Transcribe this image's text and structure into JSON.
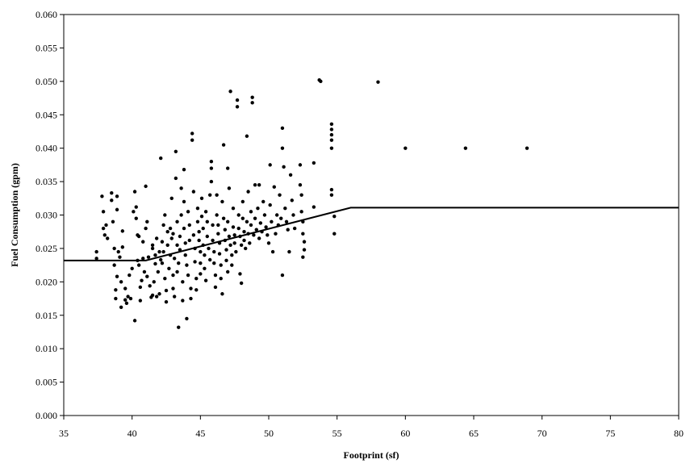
{
  "chart_data": {
    "type": "scatter",
    "title": "",
    "xlabel": "Footprint (sf)",
    "ylabel": "Fuel Consumption (gpm)",
    "xlim": [
      35,
      80
    ],
    "ylim": [
      0,
      0.06
    ],
    "xticks": [
      35,
      40,
      45,
      50,
      55,
      60,
      65,
      70,
      75,
      80
    ],
    "xtick_labels": [
      "35",
      "40",
      "45",
      "50",
      "55",
      "60",
      "65",
      "70",
      "75",
      "80"
    ],
    "yticks": [
      0,
      0.005,
      0.01,
      0.015,
      0.02,
      0.025,
      0.03,
      0.035,
      0.04,
      0.045,
      0.05,
      0.055,
      0.06
    ],
    "ytick_labels": [
      "0.000",
      "0.005",
      "0.010",
      "0.015",
      "0.020",
      "0.025",
      "0.030",
      "0.035",
      "0.040",
      "0.045",
      "0.050",
      "0.055",
      "0.060"
    ],
    "grid": false,
    "legend": "none",
    "colors": {
      "points": "#000000",
      "line": "#000000",
      "axis": "#000000"
    },
    "series": [
      {
        "type": "scatter",
        "points": [
          [
            37.4,
            0.0245
          ],
          [
            37.4,
            0.0235
          ],
          [
            37.8,
            0.0328
          ],
          [
            37.9,
            0.0305
          ],
          [
            37.9,
            0.028
          ],
          [
            38.0,
            0.027
          ],
          [
            38.1,
            0.0285
          ],
          [
            38.2,
            0.0265
          ],
          [
            38.5,
            0.0333
          ],
          [
            38.5,
            0.0322
          ],
          [
            38.6,
            0.029
          ],
          [
            38.7,
            0.025
          ],
          [
            38.7,
            0.0225
          ],
          [
            38.8,
            0.0188
          ],
          [
            38.8,
            0.0175
          ],
          [
            38.9,
            0.0328
          ],
          [
            38.9,
            0.0308
          ],
          [
            38.9,
            0.0208
          ],
          [
            39.0,
            0.0245
          ],
          [
            39.1,
            0.0237
          ],
          [
            39.2,
            0.02
          ],
          [
            39.2,
            0.0162
          ],
          [
            39.3,
            0.0276
          ],
          [
            39.3,
            0.0252
          ],
          [
            39.5,
            0.019
          ],
          [
            39.5,
            0.0173
          ],
          [
            39.6,
            0.0168
          ],
          [
            39.7,
            0.0178
          ],
          [
            39.8,
            0.021
          ],
          [
            39.9,
            0.0175
          ],
          [
            40.0,
            0.022
          ],
          [
            40.1,
            0.0305
          ],
          [
            40.2,
            0.0335
          ],
          [
            40.2,
            0.0142
          ],
          [
            40.3,
            0.0312
          ],
          [
            40.3,
            0.0295
          ],
          [
            40.4,
            0.027
          ],
          [
            40.4,
            0.0232
          ],
          [
            40.5,
            0.0268
          ],
          [
            40.5,
            0.0225
          ],
          [
            40.6,
            0.0172
          ],
          [
            40.6,
            0.0192
          ],
          [
            40.7,
            0.0202
          ],
          [
            40.8,
            0.0235
          ],
          [
            40.8,
            0.026
          ],
          [
            40.9,
            0.0215
          ],
          [
            41.0,
            0.0343
          ],
          [
            41.0,
            0.028
          ],
          [
            41.1,
            0.029
          ],
          [
            41.1,
            0.0208
          ],
          [
            41.2,
            0.0237
          ],
          [
            41.3,
            0.0194
          ],
          [
            41.4,
            0.0177
          ],
          [
            41.5,
            0.018
          ],
          [
            41.5,
            0.025
          ],
          [
            41.5,
            0.0255
          ],
          [
            41.6,
            0.02
          ],
          [
            41.7,
            0.0227
          ],
          [
            41.7,
            0.024
          ],
          [
            41.8,
            0.0265
          ],
          [
            41.8,
            0.0178
          ],
          [
            41.9,
            0.0215
          ],
          [
            42.0,
            0.0245
          ],
          [
            42.0,
            0.0182
          ],
          [
            42.1,
            0.0385
          ],
          [
            42.1,
            0.0233
          ],
          [
            42.2,
            0.0228
          ],
          [
            42.2,
            0.026
          ],
          [
            42.3,
            0.0245
          ],
          [
            42.3,
            0.0285
          ],
          [
            42.4,
            0.03
          ],
          [
            42.4,
            0.0205
          ],
          [
            42.5,
            0.0187
          ],
          [
            42.5,
            0.017
          ],
          [
            42.6,
            0.0275
          ],
          [
            42.6,
            0.0255
          ],
          [
            42.7,
            0.022
          ],
          [
            42.8,
            0.024
          ],
          [
            42.8,
            0.028
          ],
          [
            42.9,
            0.0325
          ],
          [
            42.9,
            0.0265
          ],
          [
            43.0,
            0.0272
          ],
          [
            43.0,
            0.021
          ],
          [
            43.0,
            0.019
          ],
          [
            43.1,
            0.0235
          ],
          [
            43.1,
            0.0178
          ],
          [
            43.2,
            0.0395
          ],
          [
            43.2,
            0.0355
          ],
          [
            43.3,
            0.029
          ],
          [
            43.3,
            0.0255
          ],
          [
            43.3,
            0.0215
          ],
          [
            43.4,
            0.0132
          ],
          [
            43.4,
            0.0228
          ],
          [
            43.5,
            0.0268
          ],
          [
            43.5,
            0.0248
          ],
          [
            43.6,
            0.03
          ],
          [
            43.6,
            0.034
          ],
          [
            43.7,
            0.02
          ],
          [
            43.7,
            0.0172
          ],
          [
            43.8,
            0.0368
          ],
          [
            43.8,
            0.032
          ],
          [
            43.8,
            0.028
          ],
          [
            43.9,
            0.0258
          ],
          [
            43.9,
            0.024
          ],
          [
            44.0,
            0.0225
          ],
          [
            44.0,
            0.0145
          ],
          [
            44.1,
            0.0305
          ],
          [
            44.1,
            0.021
          ],
          [
            44.2,
            0.0285
          ],
          [
            44.2,
            0.0262
          ],
          [
            44.3,
            0.019
          ],
          [
            44.3,
            0.0175
          ],
          [
            44.4,
            0.0422
          ],
          [
            44.4,
            0.0412
          ],
          [
            44.5,
            0.0335
          ],
          [
            44.5,
            0.027
          ],
          [
            44.6,
            0.025
          ],
          [
            44.6,
            0.023
          ],
          [
            44.7,
            0.0205
          ],
          [
            44.7,
            0.0188
          ],
          [
            44.8,
            0.031
          ],
          [
            44.8,
            0.029
          ],
          [
            44.9,
            0.0275
          ],
          [
            44.9,
            0.0262
          ],
          [
            45.0,
            0.0245
          ],
          [
            45.0,
            0.0228
          ],
          [
            45.0,
            0.0212
          ],
          [
            45.1,
            0.0325
          ],
          [
            45.1,
            0.0298
          ],
          [
            45.2,
            0.028
          ],
          [
            45.2,
            0.0255
          ],
          [
            45.3,
            0.024
          ],
          [
            45.3,
            0.022
          ],
          [
            45.4,
            0.0202
          ],
          [
            45.4,
            0.0305
          ],
          [
            45.5,
            0.029
          ],
          [
            45.5,
            0.0268
          ],
          [
            45.6,
            0.025
          ],
          [
            45.7,
            0.033
          ],
          [
            45.7,
            0.0233
          ],
          [
            45.8,
            0.038
          ],
          [
            45.8,
            0.037
          ],
          [
            45.8,
            0.035
          ],
          [
            45.9,
            0.0285
          ],
          [
            45.9,
            0.0262
          ],
          [
            46.0,
            0.0245
          ],
          [
            46.0,
            0.0228
          ],
          [
            46.1,
            0.021
          ],
          [
            46.1,
            0.0192
          ],
          [
            46.2,
            0.033
          ],
          [
            46.2,
            0.03
          ],
          [
            46.3,
            0.0285
          ],
          [
            46.3,
            0.0272
          ],
          [
            46.4,
            0.0258
          ],
          [
            46.4,
            0.0242
          ],
          [
            46.5,
            0.0225
          ],
          [
            46.5,
            0.0205
          ],
          [
            46.6,
            0.0182
          ],
          [
            46.6,
            0.032
          ],
          [
            46.7,
            0.0405
          ],
          [
            46.7,
            0.0295
          ],
          [
            46.8,
            0.0278
          ],
          [
            46.8,
            0.0262
          ],
          [
            46.9,
            0.0248
          ],
          [
            46.9,
            0.0232
          ],
          [
            47.0,
            0.037
          ],
          [
            47.0,
            0.0215
          ],
          [
            47.0,
            0.029
          ],
          [
            47.1,
            0.034
          ],
          [
            47.1,
            0.0268
          ],
          [
            47.2,
            0.0485
          ],
          [
            47.2,
            0.0255
          ],
          [
            47.3,
            0.024
          ],
          [
            47.3,
            0.0225
          ],
          [
            47.4,
            0.031
          ],
          [
            47.4,
            0.0282
          ],
          [
            47.5,
            0.027
          ],
          [
            47.5,
            0.0258
          ],
          [
            47.6,
            0.0245
          ],
          [
            47.7,
            0.0472
          ],
          [
            47.7,
            0.0462
          ],
          [
            47.8,
            0.03
          ],
          [
            47.8,
            0.028
          ],
          [
            47.9,
            0.0268
          ],
          [
            47.9,
            0.0212
          ],
          [
            48.0,
            0.0255
          ],
          [
            48.0,
            0.0198
          ],
          [
            48.1,
            0.032
          ],
          [
            48.1,
            0.0295
          ],
          [
            48.2,
            0.0275
          ],
          [
            48.2,
            0.0262
          ],
          [
            48.3,
            0.025
          ],
          [
            48.4,
            0.0418
          ],
          [
            48.4,
            0.029
          ],
          [
            48.5,
            0.0335
          ],
          [
            48.5,
            0.0272
          ],
          [
            48.6,
            0.0258
          ],
          [
            48.7,
            0.0305
          ],
          [
            48.7,
            0.0285
          ],
          [
            48.8,
            0.0476
          ],
          [
            48.8,
            0.0468
          ],
          [
            48.9,
            0.027
          ],
          [
            49.0,
            0.0345
          ],
          [
            49.0,
            0.0295
          ],
          [
            49.1,
            0.0278
          ],
          [
            49.2,
            0.031
          ],
          [
            49.3,
            0.0345
          ],
          [
            49.3,
            0.0265
          ],
          [
            49.4,
            0.0288
          ],
          [
            49.5,
            0.0275
          ],
          [
            49.6,
            0.032
          ],
          [
            49.7,
            0.03
          ],
          [
            49.8,
            0.0282
          ],
          [
            49.9,
            0.027
          ],
          [
            50.0,
            0.0258
          ],
          [
            50.1,
            0.0375
          ],
          [
            50.1,
            0.0315
          ],
          [
            50.2,
            0.029
          ],
          [
            50.3,
            0.0245
          ],
          [
            50.4,
            0.0342
          ],
          [
            50.5,
            0.0272
          ],
          [
            50.6,
            0.03
          ],
          [
            50.7,
            0.0285
          ],
          [
            50.8,
            0.033
          ],
          [
            50.9,
            0.0295
          ],
          [
            51.0,
            0.043
          ],
          [
            51.0,
            0.04
          ],
          [
            51.0,
            0.021
          ],
          [
            51.1,
            0.0372
          ],
          [
            51.2,
            0.031
          ],
          [
            51.3,
            0.029
          ],
          [
            51.4,
            0.0278
          ],
          [
            51.5,
            0.0245
          ],
          [
            51.6,
            0.036
          ],
          [
            51.7,
            0.0322
          ],
          [
            51.8,
            0.03
          ],
          [
            51.9,
            0.028
          ],
          [
            52.3,
            0.0375
          ],
          [
            52.3,
            0.0345
          ],
          [
            52.4,
            0.033
          ],
          [
            52.4,
            0.0305
          ],
          [
            52.5,
            0.029
          ],
          [
            52.5,
            0.0272
          ],
          [
            52.6,
            0.026
          ],
          [
            52.6,
            0.0248
          ],
          [
            52.5,
            0.0237
          ],
          [
            53.3,
            0.0378
          ],
          [
            53.3,
            0.0312
          ],
          [
            53.7,
            0.0502
          ],
          [
            53.8,
            0.05
          ],
          [
            54.6,
            0.0436
          ],
          [
            54.6,
            0.0428
          ],
          [
            54.6,
            0.042
          ],
          [
            54.6,
            0.0412
          ],
          [
            54.6,
            0.04
          ],
          [
            54.6,
            0.0338
          ],
          [
            54.6,
            0.033
          ],
          [
            54.8,
            0.0298
          ],
          [
            54.8,
            0.0272
          ],
          [
            58.0,
            0.0499
          ],
          [
            60.0,
            0.04
          ],
          [
            64.4,
            0.04
          ],
          [
            68.9,
            0.04
          ]
        ]
      },
      {
        "type": "line",
        "points": [
          [
            35,
            0.0232
          ],
          [
            41,
            0.0232
          ],
          [
            56,
            0.0311
          ],
          [
            80,
            0.0311
          ]
        ]
      }
    ]
  }
}
